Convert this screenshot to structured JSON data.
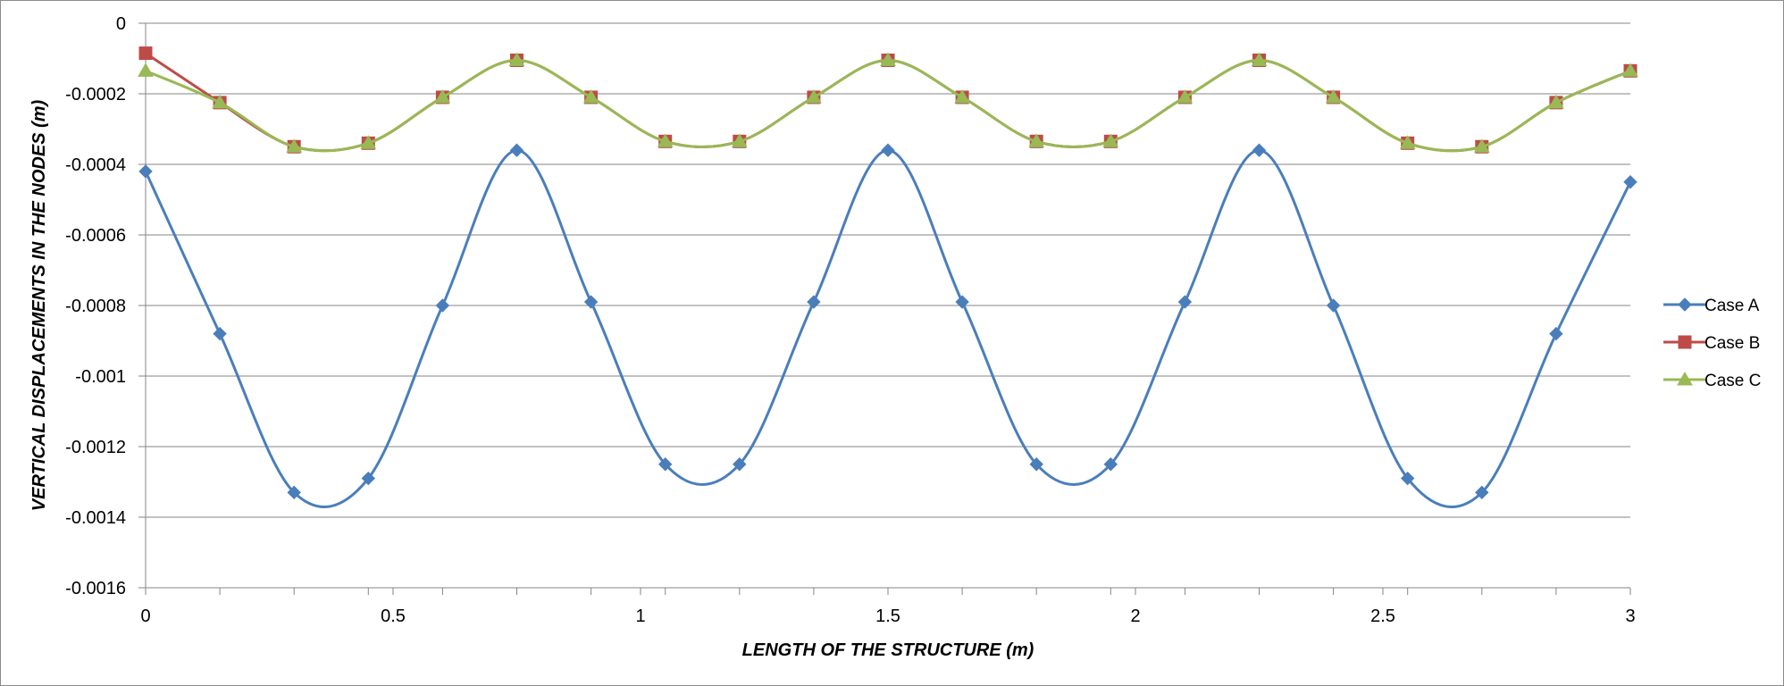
{
  "chart_data": {
    "type": "line",
    "title": "",
    "xlabel": "LENGTH OF THE STRUCTURE (m)",
    "ylabel": "VERTICAL DISPLACEMENTS IN THE NODES (m)",
    "xlim": [
      0,
      3
    ],
    "ylim": [
      -0.0016,
      0
    ],
    "x_ticks": [
      0,
      0.5,
      1,
      1.5,
      2,
      2.5,
      3
    ],
    "x_tick_labels": [
      "0",
      "0.5",
      "1",
      "1.5",
      "2",
      "2.5",
      "3"
    ],
    "y_ticks": [
      0,
      -0.0002,
      -0.0004,
      -0.0006,
      -0.0008,
      -0.001,
      -0.0012,
      -0.0014,
      -0.0016
    ],
    "y_tick_labels": [
      "0",
      "-0.0002",
      "-0.0004",
      "-0.0006",
      "-0.0008",
      "-0.001",
      "-0.0012",
      "-0.0014",
      "-0.0016"
    ],
    "grid": "horizontal",
    "legend_position": "right",
    "x": [
      0,
      0.15,
      0.3,
      0.45,
      0.6,
      0.75,
      0.9,
      1.05,
      1.2,
      1.35,
      1.5,
      1.65,
      1.8,
      1.95,
      2.1,
      2.25,
      2.4,
      2.55,
      2.7,
      2.85,
      3.0
    ],
    "series": [
      {
        "name": "Case A",
        "color": "#4a7ebb",
        "marker": "diamond",
        "smooth": true,
        "values": [
          -0.00042,
          -0.00088,
          -0.00133,
          -0.00129,
          -0.0008,
          -0.00036,
          -0.00079,
          -0.00125,
          -0.00125,
          -0.00079,
          -0.00036,
          -0.00079,
          -0.00125,
          -0.00125,
          -0.00079,
          -0.00036,
          -0.0008,
          -0.00129,
          -0.00133,
          -0.00088,
          -0.00045
        ]
      },
      {
        "name": "Case B",
        "color": "#be4b48",
        "marker": "square",
        "smooth": false,
        "values": [
          -8.5e-05,
          -0.000225,
          -0.00035,
          -0.00034,
          -0.00021,
          -0.000105,
          -0.00021,
          -0.000335,
          -0.000335,
          -0.00021,
          -0.000105,
          -0.00021,
          -0.000335,
          -0.000335,
          -0.00021,
          -0.000105,
          -0.00021,
          -0.00034,
          -0.00035,
          -0.000225,
          -0.000135
        ]
      },
      {
        "name": "Case C",
        "color": "#98b954",
        "marker": "triangle",
        "smooth": true,
        "values": [
          -0.000135,
          -0.000225,
          -0.00035,
          -0.00034,
          -0.00021,
          -0.000105,
          -0.00021,
          -0.000335,
          -0.000335,
          -0.00021,
          -0.000105,
          -0.00021,
          -0.000335,
          -0.000335,
          -0.00021,
          -0.000105,
          -0.00021,
          -0.00034,
          -0.00035,
          -0.000225,
          -0.000135
        ]
      }
    ]
  }
}
